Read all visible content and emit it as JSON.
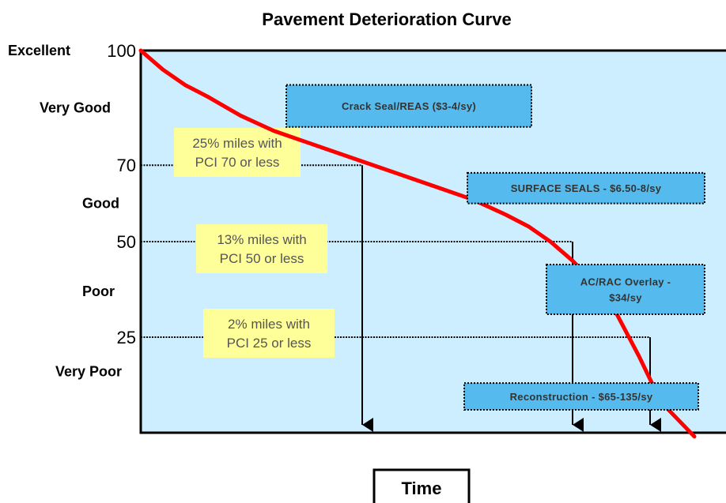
{
  "chart_data": {
    "type": "line",
    "title": "Pavement Deterioration Curve",
    "xlabel": "Time",
    "ylabel": "",
    "ylim": [
      0,
      100
    ],
    "y_ticks": [
      {
        "value": 100,
        "label": "100"
      },
      {
        "value": 70,
        "label": "70"
      },
      {
        "value": 50,
        "label": "50"
      },
      {
        "value": 25,
        "label": "25"
      }
    ],
    "condition_labels": [
      {
        "value": 100,
        "label": "Excellent"
      },
      {
        "value": 85,
        "label": "Very Good"
      },
      {
        "value": 60,
        "label": "Good"
      },
      {
        "value": 37,
        "label": "Poor"
      },
      {
        "value": 16,
        "label": "Very Poor"
      }
    ],
    "series": [
      {
        "color": "#ff0000",
        "x": [
          0,
          4,
          8,
          12,
          18,
          24,
          30,
          36,
          42,
          48,
          54,
          60,
          66,
          70,
          74,
          78,
          82,
          86,
          90,
          94,
          100
        ],
        "y": [
          100,
          95,
          91,
          88,
          83,
          79,
          76,
          73,
          70,
          67,
          64,
          61,
          57,
          54,
          50,
          45,
          39,
          31,
          20,
          8,
          -1
        ]
      }
    ],
    "thresholds": [
      {
        "pci": 70,
        "x_end": 40,
        "note_lines": [
          "25% miles with",
          "PCI 70 or less"
        ]
      },
      {
        "pci": 50,
        "x_end": 78,
        "note_lines": [
          "13% miles with",
          "PCI 50 or less"
        ]
      },
      {
        "pci": 25,
        "x_end": 92,
        "note_lines": [
          "2% miles with",
          "PCI 25 or less"
        ]
      }
    ],
    "treatments": [
      {
        "lines": [
          "Crack Seal/REAS ($3-4/sy)"
        ],
        "pci_from": 91,
        "pci_to": 80
      },
      {
        "lines": [
          "SURFACE SEALS - $6.50-8/sy"
        ],
        "pci_from": 68,
        "pci_to": 60
      },
      {
        "lines": [
          "AC/RAC Overlay -",
          "$34/sy"
        ],
        "pci_from": 44,
        "pci_to": 31
      },
      {
        "lines": [
          "Reconstruction - $65-135/sy"
        ],
        "pci_from": 13,
        "pci_to": 6
      }
    ],
    "colors": {
      "plot_background": "#cceeff",
      "curve": "#ff0000",
      "note_box": "#ffff99",
      "treatment_box": "#55bbee"
    },
    "grid": false,
    "legend": "none"
  }
}
